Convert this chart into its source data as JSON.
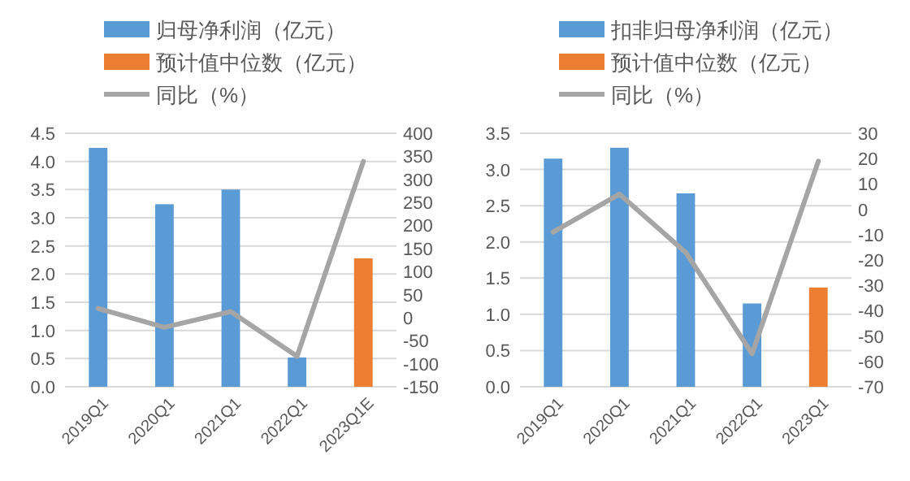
{
  "chart_data": [
    {
      "type": "bar",
      "categories": [
        "2019Q1",
        "2020Q1",
        "2021Q1",
        "2022Q1",
        "2023Q1E"
      ],
      "series": [
        {
          "name": "归母净利润（亿元）",
          "color": "#5b9bd5",
          "values": [
            4.24,
            3.24,
            3.5,
            0.52,
            null
          ]
        },
        {
          "name": "预计值中位数（亿元）",
          "color": "#ed7d31",
          "values": [
            null,
            null,
            null,
            null,
            2.28
          ]
        },
        {
          "name": "同比（%）",
          "type": "line",
          "axis": "y2",
          "color": "#a5a5a5",
          "values": [
            20,
            -21,
            13,
            -84,
            339
          ]
        }
      ],
      "ylim": [
        0,
        4.5
      ],
      "yticks": [
        {
          "value": 0,
          "label": "0.0"
        },
        0.5,
        {
          "value": 1,
          "label": "1.0"
        },
        1.5,
        {
          "value": 2,
          "label": "2.0"
        },
        2.5,
        {
          "value": 3,
          "label": "3.0"
        },
        3.5,
        {
          "value": 4,
          "label": "4.0"
        },
        4.5
      ],
      "y2lim": [
        -150,
        400
      ],
      "y2ticks": [
        -150,
        -100,
        -50,
        0,
        50,
        100,
        150,
        200,
        250,
        300,
        350,
        400
      ],
      "grid": "y",
      "legend": "top"
    },
    {
      "type": "bar",
      "categories": [
        "2019Q1",
        "2020Q1",
        "2021Q1",
        "2022Q1",
        "2023Q1"
      ],
      "series": [
        {
          "name": "扣非归母净利润（亿元）",
          "color": "#5b9bd5",
          "values": [
            3.15,
            3.3,
            2.67,
            1.15,
            null
          ]
        },
        {
          "name": "预计值中位数（亿元）",
          "color": "#ed7d31",
          "values": [
            null,
            null,
            null,
            null,
            1.37
          ]
        },
        {
          "name": "同比（%）",
          "type": "line",
          "axis": "y2",
          "color": "#a5a5a5",
          "values": [
            -9,
            6,
            -17,
            -57,
            19
          ]
        }
      ],
      "ylim": [
        0,
        3.5
      ],
      "yticks": [
        {
          "value": 0,
          "label": "0.0"
        },
        0.5,
        {
          "value": 1,
          "label": "1.0"
        },
        1.5,
        {
          "value": 2,
          "label": "2.0"
        },
        2.5,
        {
          "value": 3,
          "label": "3.0"
        },
        3.5
      ],
      "y2lim": [
        -70,
        30
      ],
      "y2ticks": [
        -70,
        -60,
        -50,
        -40,
        -30,
        -20,
        -10,
        0,
        10,
        20,
        30
      ],
      "grid": "y",
      "legend": "top"
    }
  ]
}
